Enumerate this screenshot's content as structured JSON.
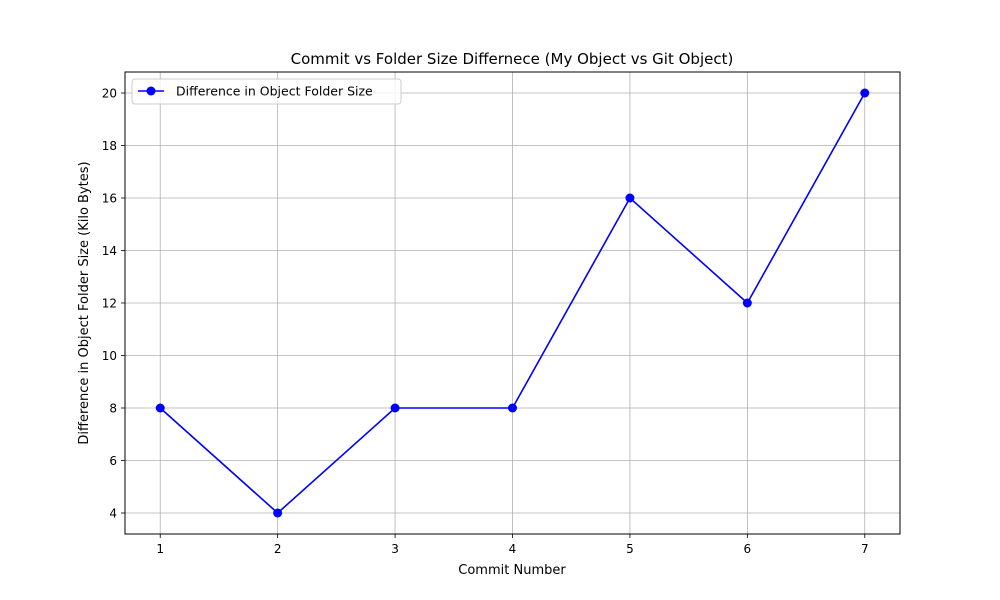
{
  "chart_data": {
    "type": "line",
    "title": "Commit vs Folder Size Differnece (My Object vs Git Object)",
    "xlabel": "Commit Number",
    "ylabel": "Difference in Object Folder Size (Kilo Bytes)",
    "x": [
      1,
      2,
      3,
      4,
      5,
      6,
      7
    ],
    "x_ticks": [
      "1",
      "2",
      "3",
      "4",
      "5",
      "6",
      "7"
    ],
    "y_ticks": [
      "4",
      "6",
      "8",
      "10",
      "12",
      "14",
      "16",
      "18",
      "20"
    ],
    "xlim": [
      0.7,
      7.3
    ],
    "ylim": [
      3.2,
      20.8
    ],
    "grid": true,
    "legend_position": "top-left",
    "series": [
      {
        "name": "Difference in Object Folder Size",
        "values": [
          8,
          4,
          8,
          8,
          16,
          12,
          20
        ],
        "color": "#0000ff",
        "marker": "circle"
      }
    ]
  }
}
